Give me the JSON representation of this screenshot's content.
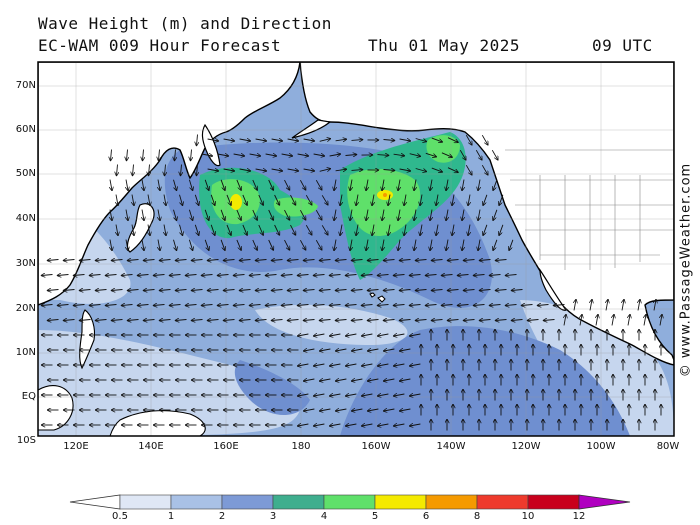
{
  "header": {
    "title_line1": "Wave Height (m) and Direction",
    "model": "EC-WAM 009 Hour Forecast",
    "date": "Thu 01 May 2025",
    "time": "09 UTC"
  },
  "credit": "© www.PassageWeather.com",
  "map": {
    "region": "North Pacific Ocean",
    "lat_labels": [
      "70N",
      "60N",
      "50N",
      "40N",
      "30N",
      "20N",
      "10N",
      "EQ",
      "10S"
    ],
    "lon_labels": [
      "120E",
      "140E",
      "160E",
      "180",
      "160W",
      "140W",
      "120W",
      "100W",
      "80W"
    ],
    "arrow_direction": "wind-wave propagation",
    "colors": {
      "ocean_base": "#8faedc",
      "band_0_5_1": "#c6d6ee",
      "band_1_2": "#8faedc",
      "band_2_3": "#6f8fd0",
      "band_3_4": "#2fb88e",
      "band_4_5": "#5fe06a",
      "band_5_6": "#f2ea00",
      "land": "#ffffff",
      "coast": "#000000"
    }
  },
  "colorbar": {
    "labels": [
      "0.5",
      "1",
      "2",
      "3",
      "4",
      "5",
      "6",
      "8",
      "10",
      "12"
    ],
    "colors": [
      "#dfe7f5",
      "#a9c1e6",
      "#7d9ad6",
      "#3fae8e",
      "#5fe06a",
      "#f4ea00",
      "#f59a00",
      "#ee3a2c",
      "#c8001c",
      "#b000c0"
    ]
  }
}
